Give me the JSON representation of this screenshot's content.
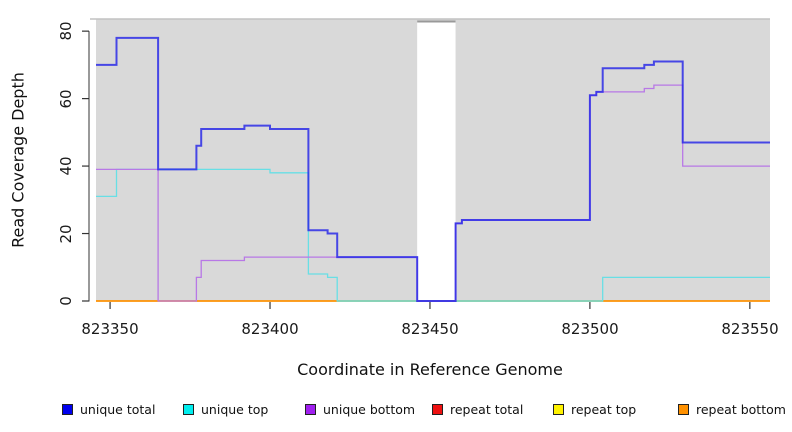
{
  "chart_data": {
    "type": "line",
    "subtype": "step-coverage-plot",
    "title": "",
    "xlabel": "Coordinate in Reference Genome",
    "ylabel": "Read Coverage Depth",
    "xlim": [
      823345.6,
      823556.3
    ],
    "ylim": [
      0,
      83.6
    ],
    "x_ticks": [
      "823350",
      "823400",
      "823450",
      "823500",
      "823550"
    ],
    "x_tick_values": [
      823350,
      823400,
      823450,
      823500,
      823550
    ],
    "y_ticks": [
      "0",
      "20",
      "40",
      "60",
      "80"
    ],
    "y_tick_values": [
      0,
      20,
      40,
      60,
      80
    ],
    "grid": false,
    "panel_background": "#d9d9d9",
    "panel_top_border": "#c2c2c2",
    "gap_region": {
      "from": 823446,
      "to": 823458,
      "fill": "#ffffff",
      "cap_color": "#999999"
    },
    "zero_overlap_segment": {
      "from": 823421,
      "to": 823504,
      "y": 0,
      "color": "#8fcf92",
      "note": "cyan+orange overlap at zero renders pale green"
    },
    "series": [
      {
        "name": "unique total",
        "color": "#2626e8",
        "width": 2,
        "opacity": 0.82,
        "points": [
          [
            823345.6,
            70
          ],
          [
            823352,
            78
          ],
          [
            823365,
            39
          ],
          [
            823377,
            46
          ],
          [
            823378.5,
            51
          ],
          [
            823392,
            52
          ],
          [
            823400,
            51
          ],
          [
            823412,
            21
          ],
          [
            823418,
            20
          ],
          [
            823421,
            13
          ],
          [
            823446,
            0
          ],
          [
            823458,
            23
          ],
          [
            823460,
            24
          ],
          [
            823500,
            61
          ],
          [
            823502,
            62
          ],
          [
            823504,
            69
          ],
          [
            823517,
            70
          ],
          [
            823520,
            71
          ],
          [
            823529,
            47
          ],
          [
            823556.3,
            47
          ]
        ]
      },
      {
        "name": "unique top",
        "color": "#68dfe5",
        "width": 1.3,
        "opacity": 1,
        "points": [
          [
            823345.6,
            31
          ],
          [
            823352,
            39
          ],
          [
            823400,
            38
          ],
          [
            823412,
            8
          ],
          [
            823418,
            7
          ],
          [
            823421,
            0
          ],
          [
            823504,
            7
          ],
          [
            823556.3,
            7
          ]
        ]
      },
      {
        "name": "unique bottom",
        "color": "#b878e6",
        "width": 1.3,
        "opacity": 1,
        "points": [
          [
            823345.6,
            39
          ],
          [
            823365,
            0
          ],
          [
            823377,
            7
          ],
          [
            823378.5,
            12
          ],
          [
            823392,
            13
          ],
          [
            823446,
            0
          ],
          [
            823458,
            23
          ],
          [
            823460,
            24
          ],
          [
            823500,
            61
          ],
          [
            823502,
            62
          ],
          [
            823517,
            63
          ],
          [
            823520,
            64
          ],
          [
            823529,
            40
          ],
          [
            823556.3,
            40
          ]
        ]
      },
      {
        "name": "repeat total",
        "color": "#e01111",
        "width": 1.3,
        "opacity": 1,
        "points": [
          [
            823345.6,
            0
          ],
          [
            823556.3,
            0
          ]
        ]
      },
      {
        "name": "repeat top",
        "color": "#f5e400",
        "width": 1.3,
        "opacity": 1,
        "points": [
          [
            823345.6,
            0
          ],
          [
            823556.3,
            0
          ]
        ]
      },
      {
        "name": "repeat bottom",
        "color": "#ff9100",
        "width": 1.6,
        "opacity": 1,
        "points": [
          [
            823345.6,
            0
          ],
          [
            823556.3,
            0
          ]
        ]
      }
    ],
    "legend_position": "bottom"
  },
  "axes": {
    "x_title": "Coordinate in Reference Genome",
    "y_title": "Read Coverage Depth"
  },
  "legend": {
    "items": [
      {
        "label": "unique total",
        "color": "#0000ee"
      },
      {
        "label": "unique top",
        "color": "#00eeee"
      },
      {
        "label": "unique bottom",
        "color": "#a020f0"
      },
      {
        "label": "repeat total",
        "color": "#ee1111"
      },
      {
        "label": "repeat top",
        "color": "#fff200"
      },
      {
        "label": "repeat bottom",
        "color": "#ff9100"
      }
    ]
  }
}
